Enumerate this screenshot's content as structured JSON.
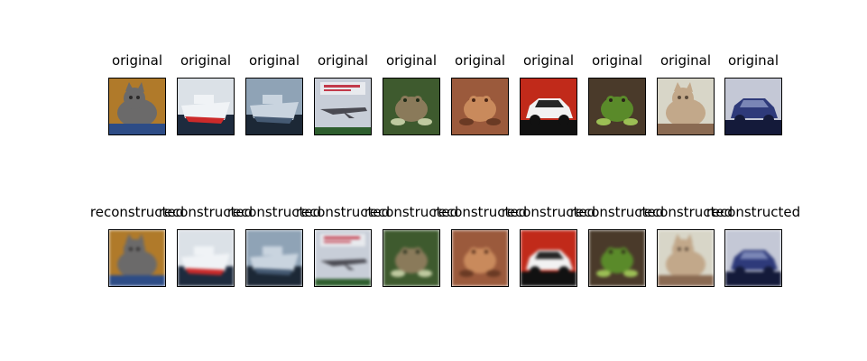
{
  "rows": [
    {
      "title": "original"
    },
    {
      "title": "reconstructed"
    }
  ],
  "images": [
    {
      "subject": "cat",
      "bg": "#b07a2a",
      "main": "#6b6a6a",
      "accent": "#2d4c86",
      "dark": "#2b2a2a"
    },
    {
      "subject": "ship",
      "bg": "#dbe1e7",
      "main": "#f0f3f6",
      "accent": "#cc2a2a",
      "dark": "#1e2b3e"
    },
    {
      "subject": "ship",
      "bg": "#8fa3b6",
      "main": "#c9d4df",
      "accent": "#455a73",
      "dark": "#1c2836"
    },
    {
      "subject": "airplane",
      "bg": "#c8ced8",
      "main": "#4a4a52",
      "accent": "#c23a4a",
      "dark": "#2e5e2e"
    },
    {
      "subject": "frog",
      "bg": "#3e5a2e",
      "main": "#8a7a5a",
      "accent": "#bfcaa0",
      "dark": "#1f2b17"
    },
    {
      "subject": "frog",
      "bg": "#9b5a3c",
      "main": "#c98a5c",
      "accent": "#6a3a24",
      "dark": "#4a2616"
    },
    {
      "subject": "car",
      "bg": "#c12a1a",
      "main": "#f2f2f2",
      "accent": "#262626",
      "dark": "#111111"
    },
    {
      "subject": "frog",
      "bg": "#4a3a2a",
      "main": "#5a8a2a",
      "accent": "#9cbf55",
      "dark": "#2a2218"
    },
    {
      "subject": "cat",
      "bg": "#d8d6c8",
      "main": "#c2a88a",
      "accent": "#8a6a52",
      "dark": "#5a4a3a"
    },
    {
      "subject": "car",
      "bg": "#c4c8d6",
      "main": "#2e3a7a",
      "accent": "#7a86b6",
      "dark": "#141a3a"
    }
  ]
}
